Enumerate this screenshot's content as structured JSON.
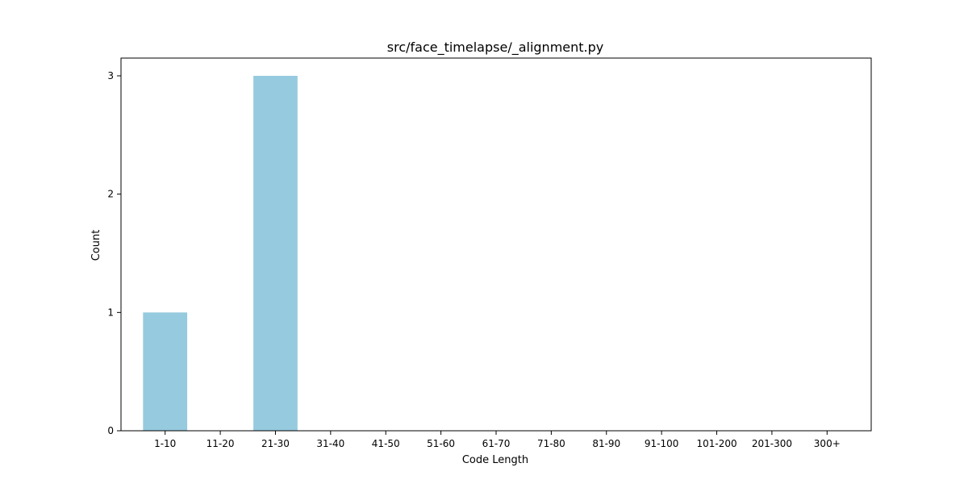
{
  "chart_data": {
    "type": "bar",
    "title": "src/face_timelapse/_alignment.py",
    "xlabel": "Code Length",
    "ylabel": "Count",
    "categories": [
      "1-10",
      "11-20",
      "21-30",
      "31-40",
      "41-50",
      "51-60",
      "61-70",
      "71-80",
      "81-90",
      "91-100",
      "101-200",
      "201-300",
      "300+"
    ],
    "values": [
      1,
      0,
      3,
      0,
      0,
      0,
      0,
      0,
      0,
      0,
      0,
      0,
      0
    ],
    "ylim": [
      0,
      3.15
    ],
    "yticks": [
      "0",
      "1",
      "2",
      "3"
    ],
    "grid": false,
    "legend": "none",
    "bar_color": "#96cadf"
  }
}
